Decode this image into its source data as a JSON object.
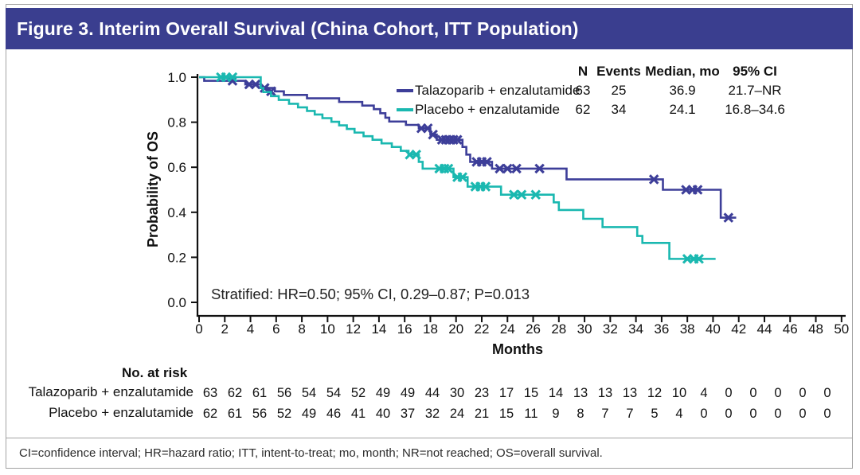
{
  "figure": {
    "title": "Figure 3. Interim Overall Survival (China Cohort, ITT Population)"
  },
  "footnote": "CI=confidence interval; HR=hazard ratio; ITT, intent-to-treat; mo, month; NR=not reached; OS=overall survival.",
  "colors": {
    "title_bar": "#3a3e8f",
    "talazoparib": "#3d3e99",
    "placebo": "#1ab8b0",
    "axis": "#111111",
    "frame_border": "#a3a3a3"
  },
  "chart_data": {
    "type": "line",
    "subtype": "kaplan-meier-step",
    "title": "Figure 3. Interim Overall Survival (China Cohort, ITT Population)",
    "xlabel": "Months",
    "ylabel": "Probability of OS",
    "xlim": [
      0,
      50
    ],
    "ylim": [
      0,
      1.0
    ],
    "x_ticks": [
      0,
      2,
      4,
      6,
      8,
      10,
      12,
      14,
      16,
      18,
      20,
      22,
      24,
      26,
      28,
      30,
      32,
      34,
      36,
      38,
      40,
      42,
      44,
      46,
      48,
      50
    ],
    "y_ticks": [
      0.0,
      0.2,
      0.4,
      0.6,
      0.8,
      1.0
    ],
    "grid": false,
    "legend_position": "top-right",
    "annotation": "Stratified: HR=0.50; 95% CI, 0.29–0.87; P=0.013",
    "legend_table": {
      "headers": [
        "N",
        "Events",
        "Median, mo",
        "95% CI"
      ]
    },
    "series": [
      {
        "name": "Talazoparib + enzalutamide",
        "color_key": "talazoparib",
        "n": "63",
        "events": "25",
        "median_mo": "36.9",
        "ci_95": "21.7–NR",
        "end_month": 41.8,
        "steps": [
          [
            0,
            1.0
          ],
          [
            0.4,
            0.984
          ],
          [
            3.6,
            0.968
          ],
          [
            4.8,
            0.952
          ],
          [
            5.9,
            0.937
          ],
          [
            6.6,
            0.921
          ],
          [
            8.4,
            0.906
          ],
          [
            10.9,
            0.89
          ],
          [
            12.7,
            0.874
          ],
          [
            13.6,
            0.858
          ],
          [
            14.1,
            0.84
          ],
          [
            14.5,
            0.82
          ],
          [
            14.8,
            0.803
          ],
          [
            16.1,
            0.788
          ],
          [
            17.1,
            0.773
          ],
          [
            18.0,
            0.745
          ],
          [
            18.5,
            0.722
          ],
          [
            20.5,
            0.69
          ],
          [
            20.8,
            0.656
          ],
          [
            21.1,
            0.624
          ],
          [
            22.8,
            0.594
          ],
          [
            28.6,
            0.546
          ],
          [
            36.1,
            0.5
          ],
          [
            40.6,
            0.376
          ]
        ],
        "censors": [
          [
            2.6,
            0.984
          ],
          [
            3.9,
            0.968
          ],
          [
            4.4,
            0.968
          ],
          [
            5.1,
            0.952
          ],
          [
            5.6,
            0.937
          ],
          [
            17.3,
            0.773
          ],
          [
            17.8,
            0.773
          ],
          [
            18.2,
            0.745
          ],
          [
            18.9,
            0.722
          ],
          [
            19.2,
            0.722
          ],
          [
            19.5,
            0.722
          ],
          [
            19.8,
            0.722
          ],
          [
            20.1,
            0.722
          ],
          [
            21.6,
            0.624
          ],
          [
            22.0,
            0.624
          ],
          [
            22.4,
            0.624
          ],
          [
            23.4,
            0.594
          ],
          [
            24.0,
            0.594
          ],
          [
            24.7,
            0.594
          ],
          [
            26.5,
            0.594
          ],
          [
            35.4,
            0.546
          ],
          [
            37.9,
            0.5
          ],
          [
            38.4,
            0.5
          ],
          [
            38.8,
            0.5
          ],
          [
            41.2,
            0.376
          ]
        ]
      },
      {
        "name": "Placebo + enzalutamide",
        "color_key": "placebo",
        "n": "62",
        "events": "34",
        "median_mo": "24.1",
        "ci_95": "16.8–34.6",
        "end_month": 40.2,
        "steps": [
          [
            0,
            1.0
          ],
          [
            4.8,
            0.952
          ],
          [
            5.0,
            0.934
          ],
          [
            5.6,
            0.916
          ],
          [
            6.2,
            0.899
          ],
          [
            7.0,
            0.882
          ],
          [
            7.7,
            0.866
          ],
          [
            8.4,
            0.85
          ],
          [
            9.0,
            0.834
          ],
          [
            9.6,
            0.818
          ],
          [
            10.3,
            0.802
          ],
          [
            10.9,
            0.786
          ],
          [
            11.5,
            0.77
          ],
          [
            12.1,
            0.754
          ],
          [
            12.8,
            0.738
          ],
          [
            13.5,
            0.722
          ],
          [
            14.2,
            0.706
          ],
          [
            15.0,
            0.69
          ],
          [
            15.7,
            0.673
          ],
          [
            16.3,
            0.656
          ],
          [
            17.1,
            0.624
          ],
          [
            17.4,
            0.594
          ],
          [
            19.8,
            0.556
          ],
          [
            20.9,
            0.514
          ],
          [
            23.5,
            0.478
          ],
          [
            27.6,
            0.444
          ],
          [
            28.0,
            0.41
          ],
          [
            29.9,
            0.371
          ],
          [
            31.4,
            0.334
          ],
          [
            34.1,
            0.295
          ],
          [
            34.5,
            0.264
          ],
          [
            36.6,
            0.193
          ]
        ],
        "censors": [
          [
            1.7,
            1.0
          ],
          [
            2.1,
            1.0
          ],
          [
            2.6,
            1.0
          ],
          [
            16.4,
            0.656
          ],
          [
            16.9,
            0.656
          ],
          [
            18.7,
            0.594
          ],
          [
            19.1,
            0.594
          ],
          [
            19.4,
            0.594
          ],
          [
            20.1,
            0.556
          ],
          [
            20.5,
            0.556
          ],
          [
            21.5,
            0.514
          ],
          [
            21.9,
            0.514
          ],
          [
            22.3,
            0.514
          ],
          [
            24.5,
            0.478
          ],
          [
            25.1,
            0.478
          ],
          [
            26.2,
            0.478
          ],
          [
            38.0,
            0.193
          ],
          [
            38.5,
            0.193
          ],
          [
            38.9,
            0.193
          ]
        ]
      }
    ],
    "at_risk": {
      "title": "No. at risk",
      "rows": [
        {
          "label": "Talazoparib + enzalutamide",
          "counts": [
            63,
            62,
            61,
            56,
            54,
            54,
            52,
            49,
            49,
            44,
            30,
            23,
            17,
            15,
            14,
            13,
            13,
            13,
            12,
            10,
            4,
            0,
            0,
            0,
            0,
            0
          ]
        },
        {
          "label": "Placebo + enzalutamide",
          "counts": [
            62,
            61,
            56,
            52,
            49,
            46,
            41,
            40,
            37,
            32,
            24,
            21,
            15,
            11,
            9,
            8,
            7,
            7,
            5,
            4,
            0,
            0,
            0,
            0,
            0,
            0
          ]
        }
      ]
    }
  }
}
